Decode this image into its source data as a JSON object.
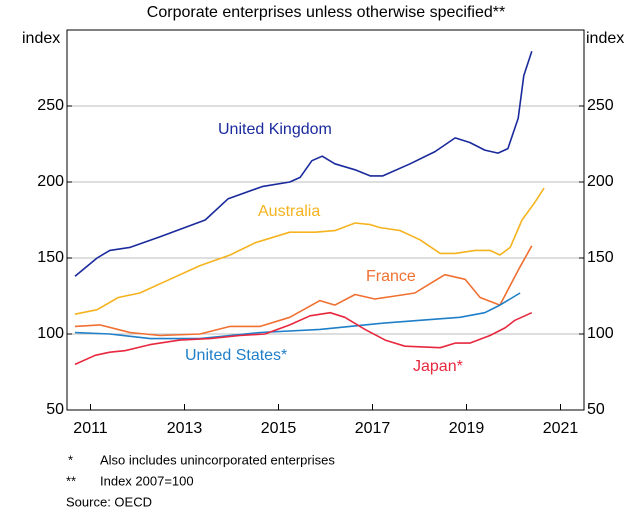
{
  "chart_data": {
    "type": "line",
    "title": "Corporate enterprises unless otherwise specified**",
    "y_label": "index",
    "y2_label": "index",
    "xlim": [
      2010.5,
      2021.5
    ],
    "xticks": [
      2011,
      2013,
      2015,
      2017,
      2019,
      2021
    ],
    "ylim": [
      50,
      300
    ],
    "yticks": [
      50,
      100,
      150,
      200,
      250
    ],
    "y2lim": [
      50,
      300
    ],
    "y2ticks": [
      50,
      100,
      150,
      200,
      250
    ],
    "grid": true,
    "series": [
      {
        "name": "United Kingdom",
        "color": "#1a2a9c",
        "x": [
          2010.67,
          2011.14,
          2011.41,
          2011.84,
          2012.48,
          2013.44,
          2013.93,
          2014.65,
          2015.24,
          2015.46,
          2015.71,
          2015.93,
          2016.2,
          2016.63,
          2016.95,
          2017.22,
          2017.8,
          2018.33,
          2018.76,
          2019.07,
          2019.39,
          2019.67,
          2019.88,
          2020.1,
          2020.22,
          2020.39
        ],
        "values": [
          138,
          150,
          155,
          157,
          164,
          175,
          189,
          197,
          200,
          203,
          214,
          217,
          212,
          208,
          204,
          204,
          212,
          220,
          229,
          226,
          221,
          219,
          222,
          242,
          270,
          286
        ]
      },
      {
        "name": "Australia",
        "color": "#f5b31f",
        "x": [
          2010.67,
          2011.14,
          2011.59,
          2012.05,
          2012.69,
          2013.33,
          2013.97,
          2014.5,
          2015.24,
          2015.78,
          2016.2,
          2016.63,
          2016.95,
          2017.16,
          2017.59,
          2018.01,
          2018.44,
          2018.76,
          2019.18,
          2019.5,
          2019.71,
          2019.93,
          2020.18,
          2020.44,
          2020.65
        ],
        "values": [
          113,
          116,
          124,
          127,
          136,
          145,
          152,
          160,
          167,
          167,
          168,
          173,
          172,
          170,
          168,
          162,
          153,
          153,
          155,
          155,
          152,
          157,
          175,
          186,
          196
        ]
      },
      {
        "name": "France",
        "color": "#f07032",
        "x": [
          2010.67,
          2011.2,
          2011.84,
          2012.48,
          2013.33,
          2013.97,
          2014.61,
          2015.24,
          2015.88,
          2016.2,
          2016.63,
          2017.05,
          2017.48,
          2017.9,
          2018.22,
          2018.54,
          2018.97,
          2019.29,
          2019.71,
          2020.1,
          2020.39
        ],
        "values": [
          105,
          106,
          101,
          99,
          100,
          105,
          105,
          111,
          122,
          119,
          126,
          123,
          125,
          127,
          133,
          139,
          136,
          124,
          119,
          142,
          158
        ]
      },
      {
        "name": "United States*",
        "color": "#1f7fc9",
        "x": [
          2010.67,
          2011.41,
          2012.27,
          2013.33,
          2014.61,
          2015.88,
          2017.16,
          2018.01,
          2018.86,
          2019.39,
          2019.71,
          2020.14
        ],
        "values": [
          101,
          100,
          97,
          97,
          101,
          103,
          107,
          109,
          111,
          114,
          119,
          127
        ]
      },
      {
        "name": "Japan*",
        "color": "#e8283e",
        "x": [
          2010.67,
          2011.1,
          2011.41,
          2011.73,
          2012.27,
          2012.9,
          2013.54,
          2014.18,
          2014.71,
          2015.24,
          2015.67,
          2016.1,
          2016.41,
          2016.84,
          2017.27,
          2017.69,
          2018.44,
          2018.76,
          2019.07,
          2019.5,
          2019.82,
          2020.03,
          2020.39
        ],
        "values": [
          80,
          86,
          88,
          89,
          93,
          96,
          97,
          99,
          100,
          106,
          112,
          114,
          111,
          103,
          96,
          92,
          91,
          94,
          94,
          99,
          104,
          109,
          114
        ]
      }
    ],
    "notes": [
      {
        "marker": "*",
        "text": "Also includes unincorporated enterprises"
      },
      {
        "marker": "**",
        "text": "Index 2007=100"
      }
    ],
    "source": "Source:  OECD"
  }
}
